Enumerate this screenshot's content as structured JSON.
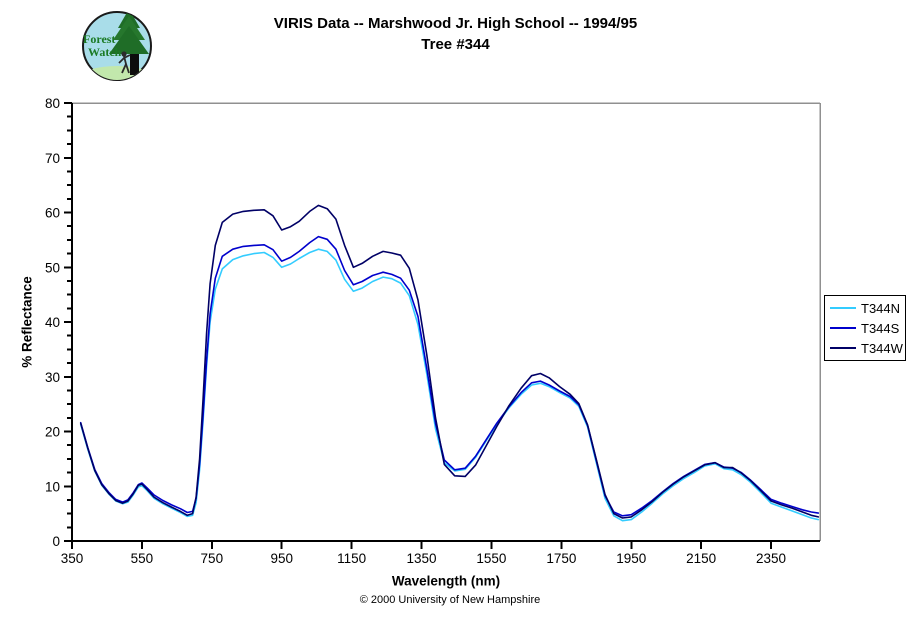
{
  "page": {
    "background": "#FFFFFF"
  },
  "logo": {
    "line1": "Forest",
    "line2": "Watch"
  },
  "header": {
    "title_line1": "VIRIS Data -- Marshwood Jr. High School -- 1994/95",
    "title_line2": "Tree #344"
  },
  "footer": {
    "copyright": "© 2000 University of New Hampshire"
  },
  "chart_data": {
    "type": "line",
    "title": "VIRIS Data -- Marshwood Jr. High School -- 1994/95 Tree #344",
    "xlabel": "Wavelength (nm)",
    "ylabel": "% Reflectance",
    "xlim": [
      350,
      2490
    ],
    "ylim": [
      0,
      80
    ],
    "x_ticks": [
      350,
      550,
      750,
      950,
      1150,
      1350,
      1550,
      1750,
      1950,
      2150,
      2350
    ],
    "y_ticks": [
      0,
      10,
      20,
      30,
      40,
      50,
      60,
      70,
      80
    ],
    "y_minor_step": 2.5,
    "grid": false,
    "legend_position": "right-outside",
    "frame_color": "#909090",
    "x": [
      375,
      395,
      415,
      435,
      455,
      475,
      495,
      510,
      525,
      540,
      550,
      565,
      585,
      610,
      635,
      660,
      680,
      695,
      705,
      715,
      725,
      735,
      745,
      760,
      780,
      810,
      840,
      870,
      900,
      925,
      950,
      975,
      1000,
      1030,
      1055,
      1080,
      1105,
      1130,
      1155,
      1180,
      1210,
      1240,
      1265,
      1290,
      1315,
      1340,
      1365,
      1390,
      1415,
      1445,
      1475,
      1505,
      1535,
      1565,
      1600,
      1635,
      1665,
      1690,
      1715,
      1745,
      1775,
      1800,
      1825,
      1850,
      1875,
      1900,
      1925,
      1950,
      1980,
      2010,
      2040,
      2070,
      2100,
      2130,
      2160,
      2190,
      2215,
      2240,
      2265,
      2290,
      2320,
      2350,
      2380,
      2410,
      2440,
      2465,
      2485
    ],
    "series": [
      {
        "name": "T344N",
        "color": "#33CCFF",
        "values": [
          21.3,
          16.8,
          12.8,
          10.2,
          8.6,
          7.3,
          6.8,
          7.1,
          8.4,
          9.9,
          10.1,
          9.2,
          7.8,
          6.8,
          6.0,
          5.2,
          4.5,
          4.7,
          7.0,
          13.0,
          22.0,
          32.0,
          40.0,
          46.0,
          49.7,
          51.4,
          52.1,
          52.5,
          52.7,
          51.8,
          50.0,
          50.6,
          51.6,
          52.7,
          53.3,
          52.9,
          51.3,
          47.8,
          45.6,
          46.2,
          47.4,
          48.2,
          47.9,
          47.1,
          44.8,
          39.5,
          30.5,
          20.5,
          14.3,
          12.8,
          13.1,
          15.3,
          18.3,
          21.3,
          24.3,
          26.8,
          28.5,
          28.8,
          28.2,
          27.1,
          26.1,
          24.6,
          20.8,
          14.3,
          7.8,
          4.6,
          3.7,
          3.9,
          5.3,
          6.9,
          8.6,
          10.1,
          11.4,
          12.5,
          13.7,
          14.1,
          13.2,
          13.0,
          12.1,
          10.8,
          8.9,
          6.9,
          6.2,
          5.5,
          4.8,
          4.2,
          3.9
        ]
      },
      {
        "name": "T344S",
        "color": "#0000CC",
        "values": [
          21.6,
          17.1,
          13.1,
          10.5,
          8.9,
          7.6,
          7.1,
          7.5,
          8.8,
          10.3,
          10.6,
          9.7,
          8.4,
          7.4,
          6.6,
          5.9,
          5.2,
          5.4,
          7.8,
          14.0,
          23.0,
          33.0,
          41.5,
          48.0,
          52.0,
          53.3,
          53.8,
          54.0,
          54.1,
          53.2,
          51.1,
          51.8,
          52.9,
          54.5,
          55.6,
          55.1,
          53.3,
          49.4,
          46.8,
          47.4,
          48.5,
          49.1,
          48.7,
          48.0,
          45.8,
          41.0,
          31.5,
          21.5,
          14.8,
          13.0,
          13.3,
          15.5,
          18.5,
          21.5,
          24.5,
          27.1,
          28.9,
          29.2,
          28.5,
          27.4,
          26.4,
          24.9,
          21.1,
          14.7,
          8.3,
          5.3,
          4.6,
          4.8,
          6.0,
          7.4,
          9.0,
          10.5,
          11.8,
          12.9,
          14.0,
          14.3,
          13.5,
          13.3,
          12.5,
          11.2,
          9.4,
          7.6,
          6.9,
          6.3,
          5.7,
          5.3,
          5.1
        ]
      },
      {
        "name": "T344W",
        "color": "#000066",
        "values": [
          21.5,
          17.0,
          12.9,
          10.3,
          8.7,
          7.4,
          6.9,
          7.3,
          8.6,
          10.2,
          10.4,
          9.4,
          8.0,
          7.0,
          6.2,
          5.4,
          4.7,
          5.0,
          8.0,
          15.0,
          26.0,
          38.0,
          47.0,
          54.0,
          58.2,
          59.7,
          60.2,
          60.4,
          60.5,
          59.4,
          56.8,
          57.4,
          58.4,
          60.2,
          61.3,
          60.7,
          58.8,
          54.0,
          50.0,
          50.7,
          52.0,
          52.9,
          52.6,
          52.2,
          49.8,
          44.0,
          34.0,
          22.5,
          14.0,
          11.9,
          11.8,
          13.9,
          17.4,
          20.9,
          24.7,
          27.9,
          30.2,
          30.6,
          29.8,
          28.2,
          26.8,
          25.1,
          21.2,
          14.9,
          8.5,
          5.0,
          4.2,
          4.4,
          5.7,
          7.2,
          8.9,
          10.4,
          11.7,
          12.8,
          13.9,
          14.3,
          13.4,
          13.4,
          12.4,
          11.1,
          9.2,
          7.3,
          6.6,
          6.0,
          5.3,
          4.7,
          4.4
        ]
      }
    ]
  }
}
